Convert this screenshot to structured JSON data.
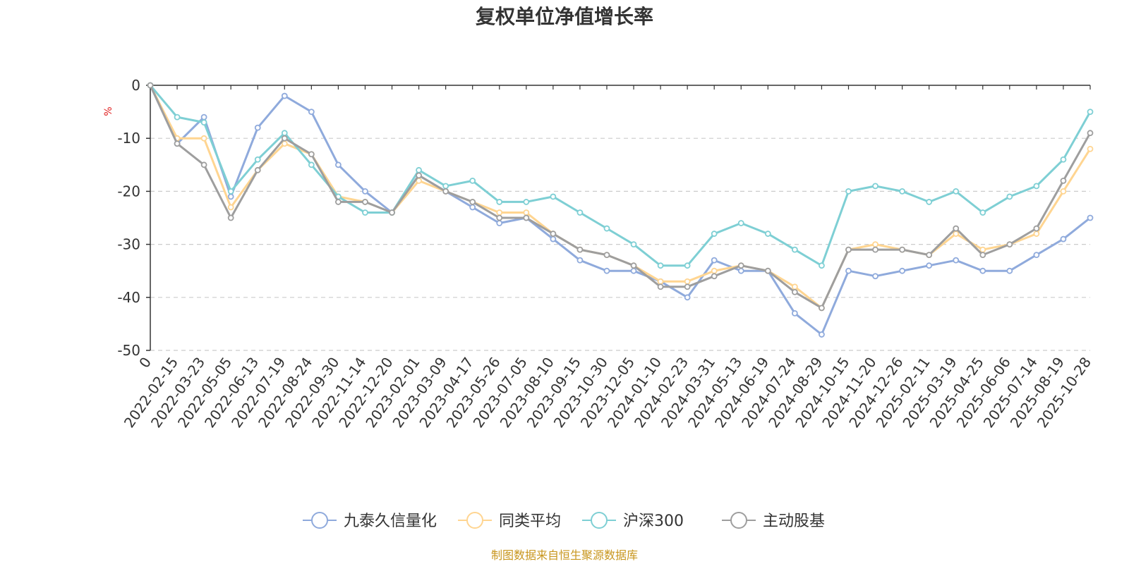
{
  "chart_data": {
    "type": "line",
    "title": "复权单位净值增长率",
    "ylabel": "%",
    "xlabel": "",
    "ylim": [
      -50,
      0
    ],
    "yticks": [
      0,
      -10,
      -20,
      -30,
      -40,
      -50
    ],
    "grid": true,
    "legend_position": "bottom",
    "source_note": "制图数据来自恒生聚源数据库",
    "x": [
      "0",
      "2022-02-15",
      "2022-03-23",
      "2022-05-05",
      "2022-06-13",
      "2022-07-19",
      "2022-08-24",
      "2022-09-30",
      "2022-11-14",
      "2022-12-20",
      "2023-02-01",
      "2023-03-09",
      "2023-04-17",
      "2023-05-26",
      "2023-07-05",
      "2023-08-10",
      "2023-09-15",
      "2023-10-30",
      "2023-12-05",
      "2024-01-10",
      "2024-02-23",
      "2024-03-31",
      "2024-05-13",
      "2024-06-19",
      "2024-07-24",
      "2024-08-29",
      "2024-10-15",
      "2024-11-20",
      "2024-12-26",
      "2025-02-11",
      "2025-03-19",
      "2025-04-25",
      "2025-06-06",
      "2025-07-14",
      "2025-08-19",
      "2025-10-28"
    ],
    "series": [
      {
        "name": "九泰久信量化",
        "color": "#8FAADC",
        "values": [
          0,
          -11,
          -6,
          -21,
          -8,
          -2,
          -5,
          -15,
          -20,
          -24,
          -17,
          -20,
          -23,
          -26,
          -25,
          -29,
          -33,
          -35,
          -35,
          -37,
          -40,
          -33,
          -35,
          -35,
          -43,
          -47,
          -35,
          -36,
          -35,
          -34,
          -33,
          -35,
          -35,
          -32,
          -29,
          -25
        ]
      },
      {
        "name": "同类平均",
        "color": "#FFD591",
        "values": [
          0,
          -10,
          -10,
          -23,
          -16,
          -11,
          -13,
          -21,
          -22,
          -24,
          -18,
          -20,
          -22,
          -24,
          -24,
          -28,
          -31,
          -32,
          -34,
          -37,
          -37,
          -35,
          -34,
          -35,
          -38,
          -42,
          -31,
          -30,
          -31,
          -32,
          -28,
          -31,
          -30,
          -28,
          -20,
          -12
        ]
      },
      {
        "name": "沪深300",
        "color": "#7ECFD4",
        "values": [
          0,
          -6,
          -7,
          -20,
          -14,
          -9,
          -15,
          -21,
          -24,
          -24,
          -16,
          -19,
          -18,
          -22,
          -22,
          -21,
          -24,
          -27,
          -30,
          -34,
          -34,
          -28,
          -26,
          -28,
          -31,
          -34,
          -20,
          -19,
          -20,
          -22,
          -20,
          -24,
          -21,
          -19,
          -14,
          -5
        ]
      },
      {
        "name": "主动股基",
        "color": "#9E9E9E",
        "values": [
          0,
          -11,
          -15,
          -25,
          -16,
          -10,
          -13,
          -22,
          -22,
          -24,
          -17,
          -20,
          -22,
          -25,
          -25,
          -28,
          -31,
          -32,
          -34,
          -38,
          -38,
          -36,
          -34,
          -35,
          -39,
          -42,
          -31,
          -31,
          -31,
          -32,
          -27,
          -32,
          -30,
          -27,
          -18,
          -9
        ]
      }
    ]
  }
}
